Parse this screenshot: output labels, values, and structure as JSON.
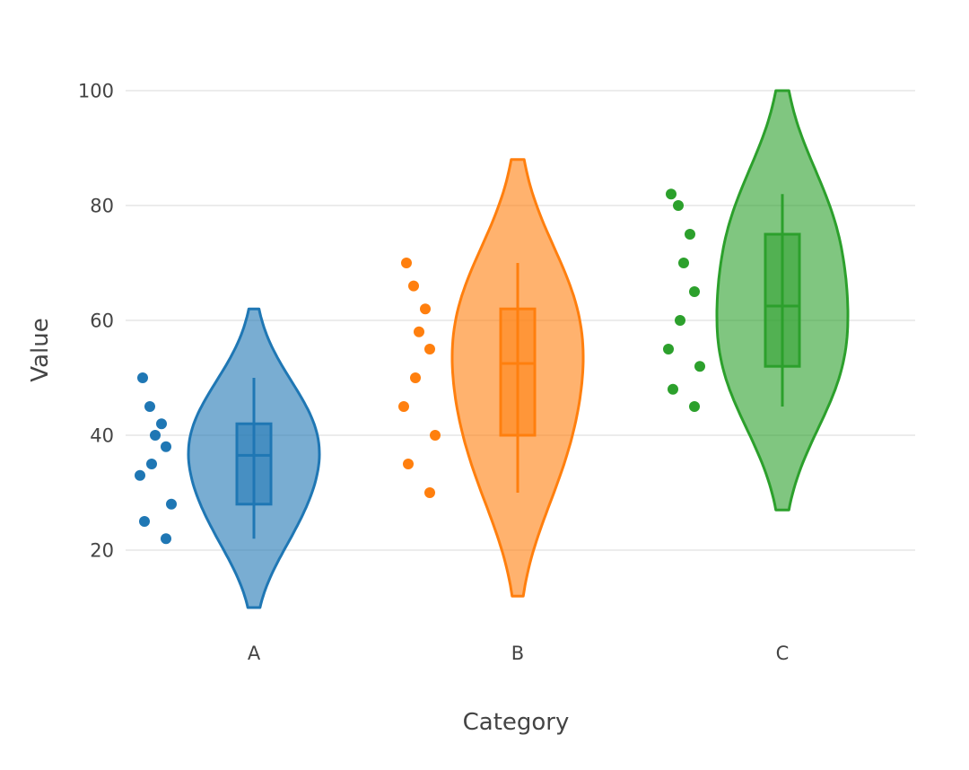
{
  "chart_data": {
    "type": "violin",
    "xlabel": "Category",
    "ylabel": "Value",
    "ylim": [
      5,
      107
    ],
    "yticks": [
      20,
      40,
      60,
      80,
      100
    ],
    "grid": true,
    "series": [
      {
        "name": "A",
        "color": "#1f77b4",
        "fill": "#77aad4",
        "points": [
          50,
          45,
          42,
          40,
          38,
          35,
          33,
          28,
          25,
          22
        ],
        "box": {
          "q1": 28,
          "median": 36.5,
          "q3": 42,
          "whisker_low": 22,
          "whisker_high": 50
        },
        "violin_range": [
          10,
          62
        ]
      },
      {
        "name": "B",
        "color": "#ff7f0e",
        "fill": "#ffb26e",
        "points": [
          70,
          66,
          62,
          58,
          55,
          50,
          45,
          40,
          35,
          30
        ],
        "box": {
          "q1": 40,
          "median": 52.5,
          "q3": 62,
          "whisker_low": 30,
          "whisker_high": 70
        },
        "violin_range": [
          12,
          88
        ]
      },
      {
        "name": "C",
        "color": "#2ca02c",
        "fill": "#80c67e",
        "points": [
          82,
          80,
          75,
          70,
          65,
          60,
          55,
          52,
          48,
          45
        ],
        "box": {
          "q1": 52,
          "median": 62.5,
          "q3": 75,
          "whisker_low": 45,
          "whisker_high": 82
        },
        "violin_range": [
          27,
          100
        ]
      }
    ]
  }
}
